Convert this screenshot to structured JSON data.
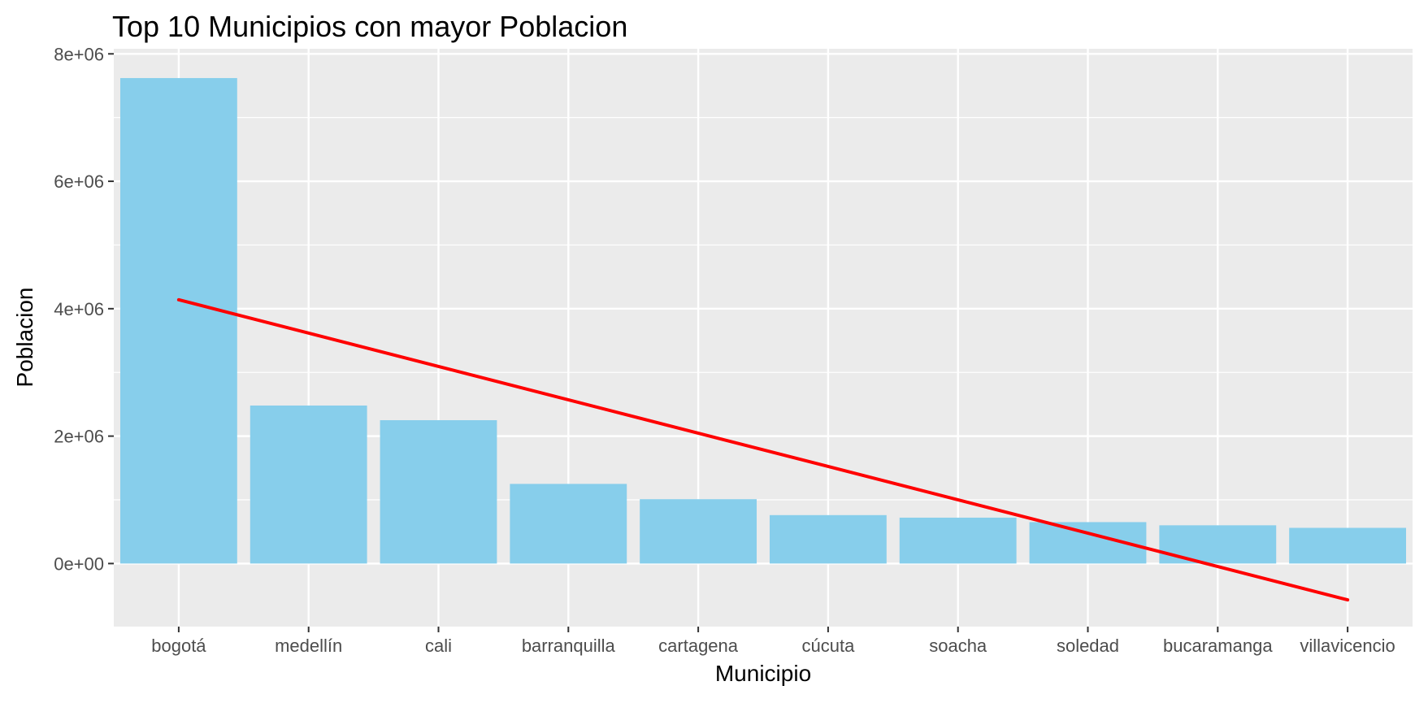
{
  "chart_data": {
    "type": "bar",
    "title": "Top 10 Municipios con mayor Poblacion",
    "xlabel": "Municipio",
    "ylabel": "Poblacion",
    "categories": [
      "bogotá",
      "medellín",
      "cali",
      "barranquilla",
      "cartagena",
      "cúcuta",
      "soacha",
      "soledad",
      "bucaramanga",
      "villavicencio"
    ],
    "values": [
      7620000,
      2480000,
      2250000,
      1250000,
      1010000,
      760000,
      720000,
      650000,
      600000,
      560000
    ],
    "yticks": [
      0,
      2000000,
      4000000,
      6000000,
      8000000
    ],
    "ytick_labels": [
      "0e+00",
      "2e+06",
      "4e+06",
      "6e+06",
      "8e+06"
    ],
    "ylim": [
      -1000000,
      8000000
    ],
    "trend_line": {
      "start": 4140000,
      "end": -570000,
      "color": "#ff0000"
    },
    "bar_color": "#87ceeb",
    "panel_color": "#ebebeb",
    "grid": true
  }
}
